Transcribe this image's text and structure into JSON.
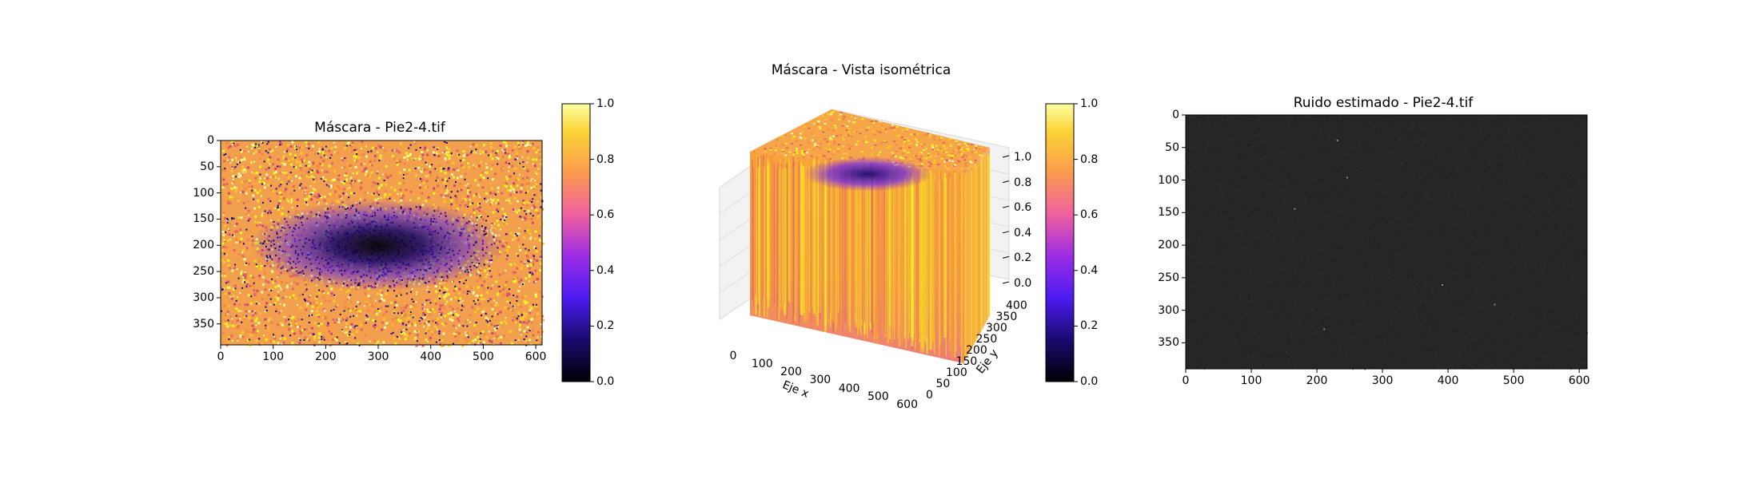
{
  "figure_title": "Máscara - Vista isométrica",
  "chart_data": [
    {
      "type": "heatmap",
      "title": "Máscara - Pie2-4.tif",
      "xlabel": "",
      "ylabel": "",
      "xlim": [
        0,
        612
      ],
      "ylim": [
        390,
        0
      ],
      "x_ticks": [
        "0",
        "100",
        "200",
        "300",
        "400",
        "500",
        "600"
      ],
      "y_ticks": [
        "0",
        "50",
        "100",
        "150",
        "200",
        "250",
        "300",
        "350"
      ],
      "colormap": "plasma",
      "colorbar": {
        "range": [
          0.0,
          1.0
        ],
        "ticks": [
          "0.0",
          "0.2",
          "0.4",
          "0.6",
          "0.8",
          "1.0"
        ]
      },
      "description_values": {
        "dark_region_center": [
          300,
          200
        ]
      }
    },
    {
      "type": "bar3d",
      "title": "",
      "xlabel": "Eje x",
      "ylabel": "Eje y",
      "x_ticks": [
        "0",
        "100",
        "200",
        "300",
        "400",
        "500",
        "600"
      ],
      "y_ticks": [
        "0",
        "50",
        "100",
        "150",
        "200",
        "250",
        "300",
        "350",
        "400"
      ],
      "z_ticks": [
        "0.0",
        "0.2",
        "0.4",
        "0.6",
        "0.8",
        "1.0"
      ],
      "colormap": "plasma",
      "colorbar": {
        "range": [
          0.0,
          1.0
        ],
        "ticks": [
          "0.0",
          "0.2",
          "0.4",
          "0.6",
          "0.8",
          "1.0"
        ]
      }
    },
    {
      "type": "heatmap",
      "title": "Ruido estimado - Pie2-4.tif",
      "xlim": [
        0,
        612
      ],
      "ylim": [
        390,
        0
      ],
      "x_ticks": [
        "0",
        "100",
        "200",
        "300",
        "400",
        "500",
        "600"
      ],
      "y_ticks": [
        "0",
        "50",
        "100",
        "150",
        "200",
        "250",
        "300",
        "350"
      ],
      "colormap": "gray"
    }
  ]
}
